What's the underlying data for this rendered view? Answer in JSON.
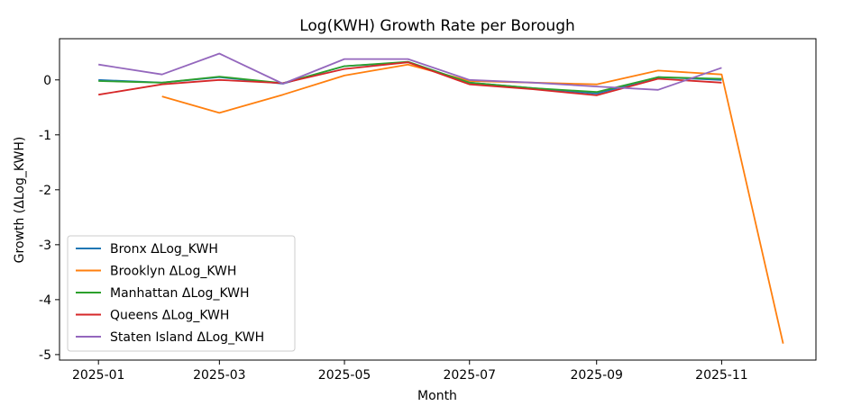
{
  "chart_data": {
    "type": "line",
    "title": "Log(KWH) Growth Rate per Borough",
    "xlabel": "Month",
    "ylabel": "Growth (ΔLog_KWH)",
    "x_ticks": [
      "2025-01",
      "2025-03",
      "2025-05",
      "2025-07",
      "2025-09",
      "2025-11"
    ],
    "y_ticks": [
      0,
      -1,
      -2,
      -3,
      -4,
      -5
    ],
    "y_tick_labels": [
      "0",
      "-1",
      "-2",
      "-3",
      "-4",
      "-5"
    ],
    "xlim": [
      "2024-12-13",
      "2025-12-17"
    ],
    "ylim": [
      -5.1,
      0.75
    ],
    "grid": false,
    "legend_position": "lower-left",
    "series": [
      {
        "name": "Bronx ΔLog_KWH",
        "color": "#1f77b4",
        "points": [
          [
            "2025-01-01",
            0.0
          ],
          [
            "2025-02-01",
            -0.05
          ],
          [
            "2025-03-01",
            0.05
          ],
          [
            "2025-04-01",
            -0.07
          ],
          [
            "2025-05-01",
            0.25
          ],
          [
            "2025-06-01",
            0.32
          ],
          [
            "2025-07-01",
            -0.05
          ],
          [
            "2025-08-01",
            -0.15
          ],
          [
            "2025-09-01",
            -0.25
          ],
          [
            "2025-10-01",
            0.05
          ],
          [
            "2025-11-01",
            0.0
          ]
        ]
      },
      {
        "name": "Brooklyn ΔLog_KWH",
        "color": "#ff7f0e",
        "points": [
          [
            "2025-02-01",
            -0.3
          ],
          [
            "2025-03-01",
            -0.6
          ],
          [
            "2025-04-01",
            -0.27
          ],
          [
            "2025-05-01",
            0.08
          ],
          [
            "2025-06-01",
            0.28
          ],
          [
            "2025-07-01",
            -0.02
          ],
          [
            "2025-08-01",
            -0.05
          ],
          [
            "2025-09-01",
            -0.08
          ],
          [
            "2025-10-01",
            0.17
          ],
          [
            "2025-11-01",
            0.1
          ],
          [
            "2025-12-01",
            -4.8
          ]
        ]
      },
      {
        "name": "Manhattan ΔLog_KWH",
        "color": "#2ca02c",
        "points": [
          [
            "2025-01-01",
            -0.02
          ],
          [
            "2025-02-01",
            -0.05
          ],
          [
            "2025-03-01",
            0.06
          ],
          [
            "2025-04-01",
            -0.06
          ],
          [
            "2025-05-01",
            0.25
          ],
          [
            "2025-06-01",
            0.33
          ],
          [
            "2025-07-01",
            -0.05
          ],
          [
            "2025-08-01",
            -0.15
          ],
          [
            "2025-09-01",
            -0.22
          ],
          [
            "2025-10-01",
            0.05
          ],
          [
            "2025-11-01",
            0.02
          ]
        ]
      },
      {
        "name": "Queens ΔLog_KWH",
        "color": "#d62728",
        "points": [
          [
            "2025-01-01",
            -0.27
          ],
          [
            "2025-02-01",
            -0.08
          ],
          [
            "2025-03-01",
            0.0
          ],
          [
            "2025-04-01",
            -0.06
          ],
          [
            "2025-05-01",
            0.2
          ],
          [
            "2025-06-01",
            0.32
          ],
          [
            "2025-07-01",
            -0.08
          ],
          [
            "2025-08-01",
            -0.17
          ],
          [
            "2025-09-01",
            -0.28
          ],
          [
            "2025-10-01",
            0.02
          ],
          [
            "2025-11-01",
            -0.05
          ]
        ]
      },
      {
        "name": "Staten Island ΔLog_KWH",
        "color": "#9467bd",
        "points": [
          [
            "2025-01-01",
            0.28
          ],
          [
            "2025-02-01",
            0.1
          ],
          [
            "2025-03-01",
            0.48
          ],
          [
            "2025-04-01",
            -0.07
          ],
          [
            "2025-05-01",
            0.38
          ],
          [
            "2025-06-01",
            0.38
          ],
          [
            "2025-07-01",
            0.0
          ],
          [
            "2025-08-01",
            -0.05
          ],
          [
            "2025-09-01",
            -0.12
          ],
          [
            "2025-10-01",
            -0.18
          ],
          [
            "2025-11-01",
            0.22
          ]
        ]
      }
    ]
  }
}
